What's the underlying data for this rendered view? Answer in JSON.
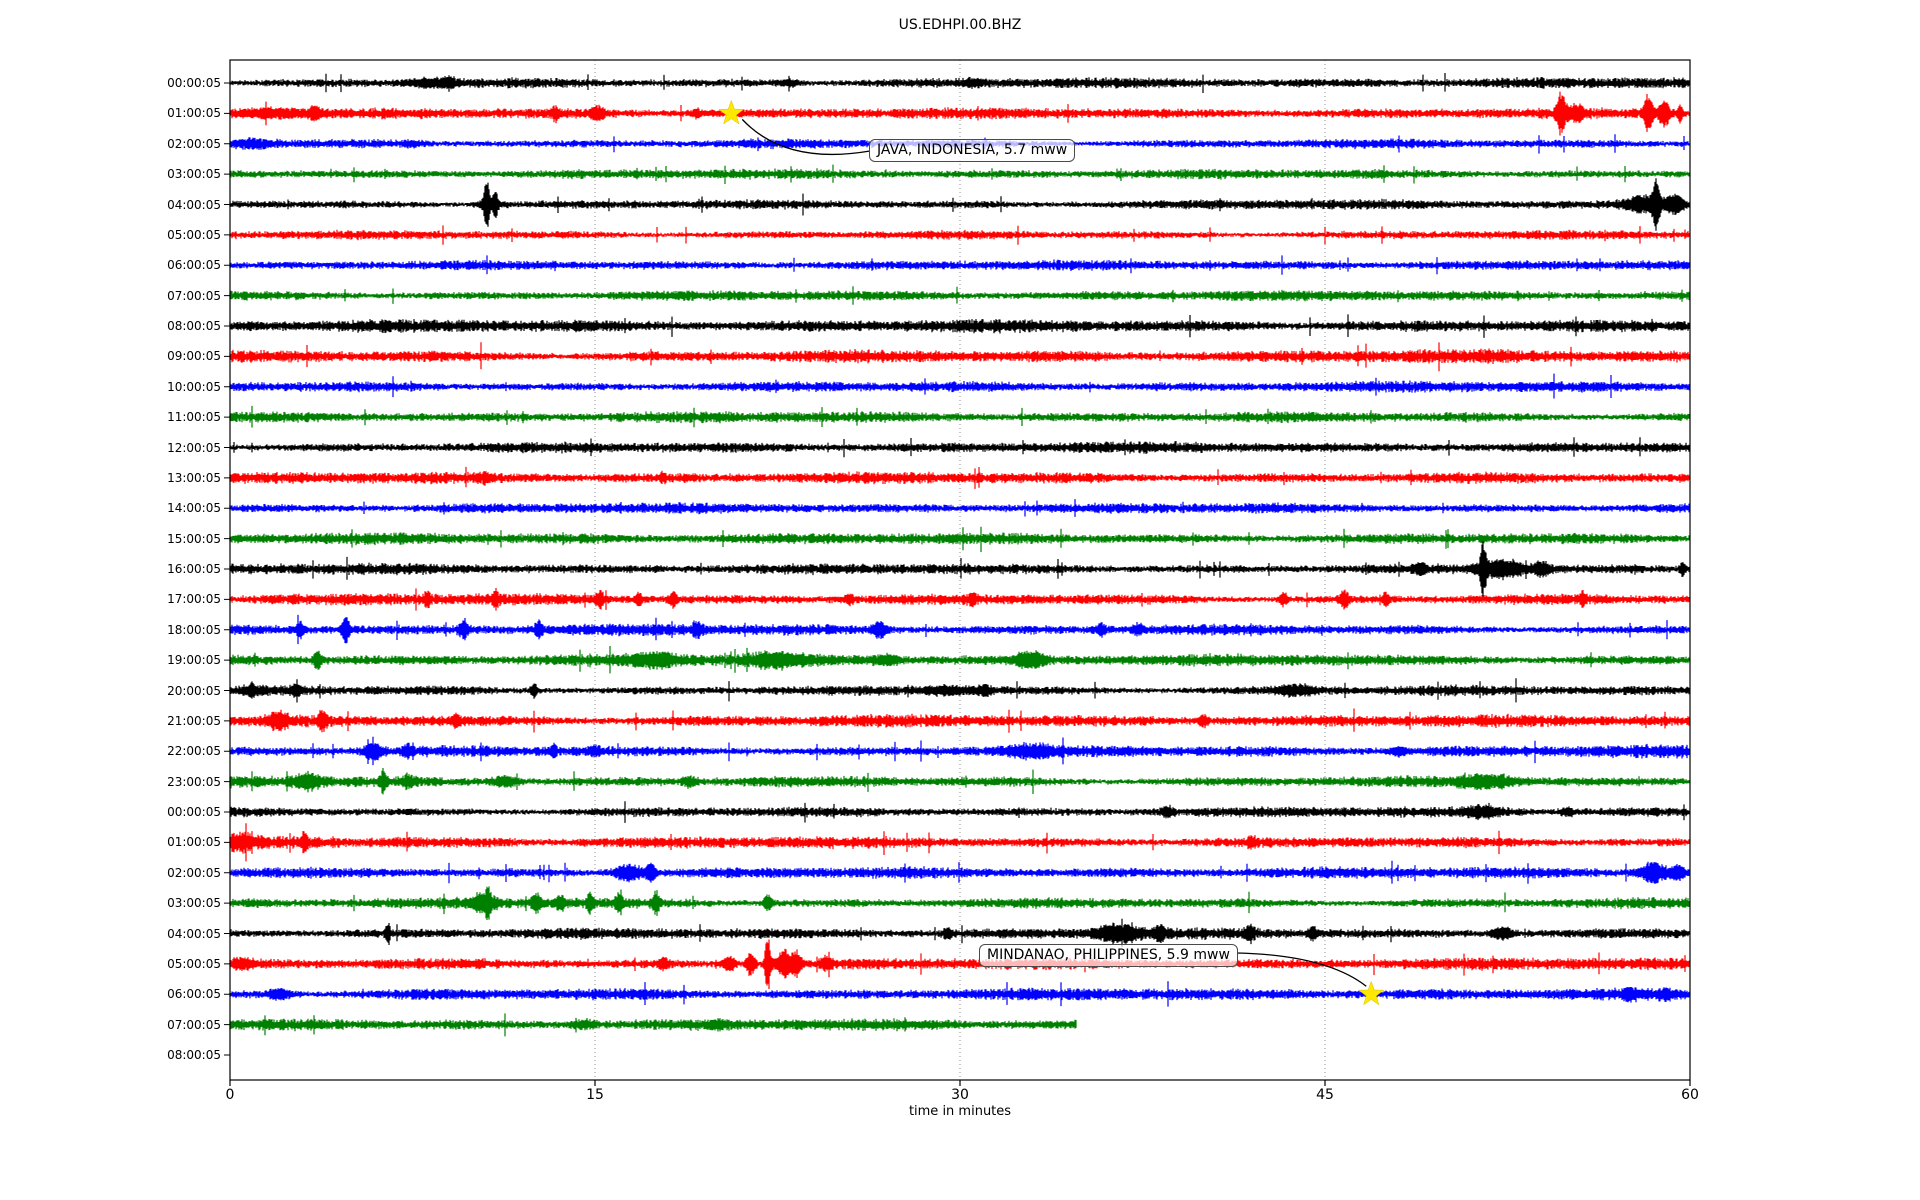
{
  "title": "US.EDHPI.00.BHZ",
  "chart_data": {
    "type": "line",
    "subtype": "seismogram-dayplot",
    "title": "US.EDHPI.00.BHZ",
    "xlabel": "time in minutes",
    "x_range": [
      0,
      60
    ],
    "x_ticks": [
      "0",
      "15",
      "30",
      "45",
      "60"
    ],
    "grid_minutes": [
      15,
      30,
      45
    ],
    "grid_style": "dotted",
    "trace_color_cycle": [
      "#000000",
      "#ff0000",
      "#0000ff",
      "#008000"
    ],
    "rows": [
      {
        "label": "00:00:05",
        "color": "#000000",
        "amp": 3.4
      },
      {
        "label": "01:00:05",
        "color": "#ff0000",
        "amp": 3.4
      },
      {
        "label": "02:00:05",
        "color": "#0000ff",
        "amp": 3.2
      },
      {
        "label": "03:00:05",
        "color": "#008000",
        "amp": 3.0
      },
      {
        "label": "04:00:05",
        "color": "#000000",
        "amp": 3.2
      },
      {
        "label": "05:00:05",
        "color": "#ff0000",
        "amp": 3.0
      },
      {
        "label": "06:00:05",
        "color": "#0000ff",
        "amp": 3.0
      },
      {
        "label": "07:00:05",
        "color": "#008000",
        "amp": 3.2
      },
      {
        "label": "08:00:05",
        "color": "#000000",
        "amp": 4.0
      },
      {
        "label": "09:00:05",
        "color": "#ff0000",
        "amp": 4.2
      },
      {
        "label": "10:00:05",
        "color": "#0000ff",
        "amp": 3.6
      },
      {
        "label": "11:00:05",
        "color": "#008000",
        "amp": 3.4
      },
      {
        "label": "12:00:05",
        "color": "#000000",
        "amp": 3.4
      },
      {
        "label": "13:00:05",
        "color": "#ff0000",
        "amp": 3.6
      },
      {
        "label": "14:00:05",
        "color": "#0000ff",
        "amp": 3.2
      },
      {
        "label": "15:00:05",
        "color": "#008000",
        "amp": 3.6
      },
      {
        "label": "16:00:05",
        "color": "#000000",
        "amp": 3.4
      },
      {
        "label": "17:00:05",
        "color": "#ff0000",
        "amp": 3.6
      },
      {
        "label": "18:00:05",
        "color": "#0000ff",
        "amp": 3.6
      },
      {
        "label": "19:00:05",
        "color": "#008000",
        "amp": 3.8
      },
      {
        "label": "20:00:05",
        "color": "#000000",
        "amp": 3.4
      },
      {
        "label": "21:00:05",
        "color": "#ff0000",
        "amp": 3.8
      },
      {
        "label": "22:00:05",
        "color": "#0000ff",
        "amp": 4.0
      },
      {
        "label": "23:00:05",
        "color": "#008000",
        "amp": 3.8
      },
      {
        "label": "00:00:05",
        "color": "#000000",
        "amp": 3.4
      },
      {
        "label": "01:00:05",
        "color": "#ff0000",
        "amp": 3.8
      },
      {
        "label": "02:00:05",
        "color": "#0000ff",
        "amp": 3.6
      },
      {
        "label": "03:00:05",
        "color": "#008000",
        "amp": 3.6
      },
      {
        "label": "04:00:05",
        "color": "#000000",
        "amp": 3.4
      },
      {
        "label": "05:00:05",
        "color": "#ff0000",
        "amp": 3.8
      },
      {
        "label": "06:00:05",
        "color": "#0000ff",
        "amp": 3.8
      },
      {
        "label": "07:00:05",
        "color": "#008000",
        "amp": 3.6,
        "end_minute": 34.8
      },
      {
        "label": "08:00:05",
        "color": "#000000",
        "amp": 0,
        "empty": true
      }
    ],
    "events": [
      {
        "label": "JAVA, INDONESIA, 5.7 mww",
        "region": "JAVA, INDONESIA",
        "magnitude": "5.7 mww",
        "row": 1,
        "row_label": "01:00:05",
        "minute": 20.6,
        "marker": "yellow-star"
      },
      {
        "label": "MINDANAO, PHILIPPINES, 5.9 mww",
        "region": "MINDANAO, PHILIPPINES",
        "magnitude": "5.9 mww",
        "row": 30,
        "row_label": "06:00:05",
        "minute": 46.9,
        "marker": "yellow-star"
      }
    ],
    "bursts": [
      [
        0,
        8.2,
        1.2,
        3
      ],
      [
        0,
        9.0,
        0.4,
        4
      ],
      [
        0,
        23,
        0.8,
        2.5
      ],
      [
        0,
        30.5,
        0.5,
        2.5
      ],
      [
        1,
        1.5,
        2.5,
        3.5
      ],
      [
        1,
        3.5,
        0.3,
        6
      ],
      [
        1,
        13.4,
        0.3,
        5
      ],
      [
        1,
        15.1,
        0.4,
        6
      ],
      [
        1,
        19.2,
        0.3,
        4
      ],
      [
        1,
        54.7,
        0.28,
        21
      ],
      [
        1,
        55.3,
        0.5,
        6
      ],
      [
        1,
        58.3,
        0.3,
        19
      ],
      [
        1,
        58.95,
        0.35,
        13
      ],
      [
        1,
        59.6,
        0.2,
        8
      ],
      [
        2,
        0.8,
        1.5,
        2.5
      ],
      [
        2,
        7.5,
        0.5,
        2
      ],
      [
        4,
        10.55,
        0.18,
        22
      ],
      [
        4,
        10.9,
        0.15,
        13
      ],
      [
        4,
        10.7,
        0.8,
        4
      ],
      [
        4,
        58.6,
        0.25,
        20
      ],
      [
        4,
        58.2,
        1.5,
        7
      ],
      [
        4,
        59.4,
        0.5,
        8
      ],
      [
        13,
        10.5,
        0.2,
        3
      ],
      [
        13,
        17.8,
        0.2,
        3
      ],
      [
        16,
        51.5,
        0.2,
        25
      ],
      [
        16,
        52.3,
        1.4,
        8
      ],
      [
        16,
        53.9,
        0.6,
        5
      ],
      [
        16,
        48.9,
        0.3,
        4
      ],
      [
        16,
        59.7,
        0.2,
        6
      ],
      [
        17,
        8.1,
        0.2,
        6
      ],
      [
        17,
        10.9,
        0.2,
        7
      ],
      [
        17,
        15.2,
        0.25,
        8
      ],
      [
        17,
        16.8,
        0.2,
        6
      ],
      [
        17,
        18.2,
        0.25,
        7
      ],
      [
        17,
        25.5,
        0.2,
        5
      ],
      [
        17,
        30.5,
        0.2,
        6
      ],
      [
        17,
        43.3,
        0.25,
        7
      ],
      [
        17,
        45.8,
        0.3,
        8
      ],
      [
        17,
        47.5,
        0.2,
        6
      ],
      [
        17,
        55.6,
        0.2,
        5
      ],
      [
        18,
        2.9,
        0.3,
        7
      ],
      [
        18,
        4.75,
        0.25,
        12
      ],
      [
        18,
        9.6,
        0.3,
        8
      ],
      [
        18,
        12.7,
        0.25,
        6
      ],
      [
        18,
        19.2,
        0.3,
        6
      ],
      [
        18,
        26.7,
        0.4,
        7
      ],
      [
        18,
        35.8,
        0.3,
        5
      ],
      [
        18,
        37.3,
        0.3,
        5
      ],
      [
        19,
        3.6,
        0.25,
        9
      ],
      [
        19,
        17.5,
        1.5,
        4
      ],
      [
        19,
        22.5,
        1.8,
        5
      ],
      [
        19,
        27,
        0.8,
        4
      ],
      [
        19,
        32.9,
        0.9,
        7
      ],
      [
        20,
        0.9,
        0.5,
        4
      ],
      [
        20,
        2.7,
        0.4,
        4
      ],
      [
        20,
        12.5,
        0.2,
        8
      ],
      [
        20,
        29.5,
        1.5,
        3
      ],
      [
        20,
        31,
        0.5,
        4
      ],
      [
        20,
        43.8,
        1.2,
        4
      ],
      [
        21,
        2.0,
        0.7,
        7
      ],
      [
        21,
        3.8,
        0.3,
        7
      ],
      [
        21,
        9.3,
        0.3,
        5
      ],
      [
        21,
        40,
        0.3,
        5
      ],
      [
        22,
        5.9,
        0.6,
        7
      ],
      [
        22,
        7.3,
        0.3,
        5
      ],
      [
        22,
        13.3,
        0.2,
        6
      ],
      [
        22,
        15,
        0.3,
        4
      ],
      [
        22,
        33,
        1.5,
        4
      ],
      [
        22,
        48,
        0.5,
        4
      ],
      [
        23,
        3.2,
        0.9,
        6
      ],
      [
        23,
        6.3,
        0.15,
        13
      ],
      [
        23,
        7.3,
        0.3,
        5
      ],
      [
        23,
        11.3,
        0.8,
        5
      ],
      [
        23,
        18.9,
        0.4,
        4
      ],
      [
        23,
        51.7,
        1.8,
        5
      ],
      [
        24,
        38.5,
        0.4,
        4
      ],
      [
        24,
        51.5,
        1.2,
        4
      ],
      [
        24,
        55,
        0.4,
        3
      ],
      [
        25,
        0.5,
        0.8,
        6
      ],
      [
        25,
        3.05,
        0.2,
        10
      ],
      [
        25,
        42,
        0.3,
        4
      ],
      [
        26,
        16.4,
        0.9,
        8
      ],
      [
        26,
        17.3,
        0.3,
        9
      ],
      [
        26,
        58.5,
        0.9,
        9
      ],
      [
        26,
        59.5,
        0.4,
        7
      ],
      [
        27,
        10.4,
        0.8,
        7
      ],
      [
        27,
        10.6,
        0.15,
        12
      ],
      [
        27,
        12.6,
        0.3,
        8
      ],
      [
        27,
        13.6,
        0.3,
        7
      ],
      [
        27,
        14.8,
        0.2,
        10
      ],
      [
        27,
        16,
        0.3,
        6
      ],
      [
        27,
        17.5,
        0.2,
        11
      ],
      [
        27,
        22.1,
        0.25,
        8
      ],
      [
        28,
        6.5,
        0.15,
        8
      ],
      [
        28,
        29.5,
        0.3,
        4
      ],
      [
        28,
        36.5,
        1.4,
        7
      ],
      [
        28,
        38.2,
        0.4,
        5
      ],
      [
        28,
        41.9,
        0.3,
        7
      ],
      [
        28,
        52.3,
        0.7,
        5
      ],
      [
        28,
        44.5,
        0.3,
        4
      ],
      [
        29,
        0.5,
        0.8,
        4
      ],
      [
        29,
        17.8,
        0.3,
        5
      ],
      [
        29,
        20.5,
        0.4,
        7
      ],
      [
        29,
        21.4,
        0.3,
        11
      ],
      [
        29,
        22.1,
        0.2,
        27
      ],
      [
        29,
        22.8,
        0.6,
        12
      ],
      [
        29,
        23.3,
        0.3,
        9
      ],
      [
        29,
        24.5,
        0.4,
        5
      ],
      [
        30,
        2,
        0.8,
        4
      ],
      [
        30,
        57.5,
        0.4,
        4
      ],
      [
        30,
        59,
        0.3,
        4
      ],
      [
        31,
        14.5,
        0.8,
        3
      ],
      [
        31,
        20,
        0.5,
        3
      ]
    ],
    "marker_color": "#ffe800",
    "grid_color": "#888888"
  }
}
